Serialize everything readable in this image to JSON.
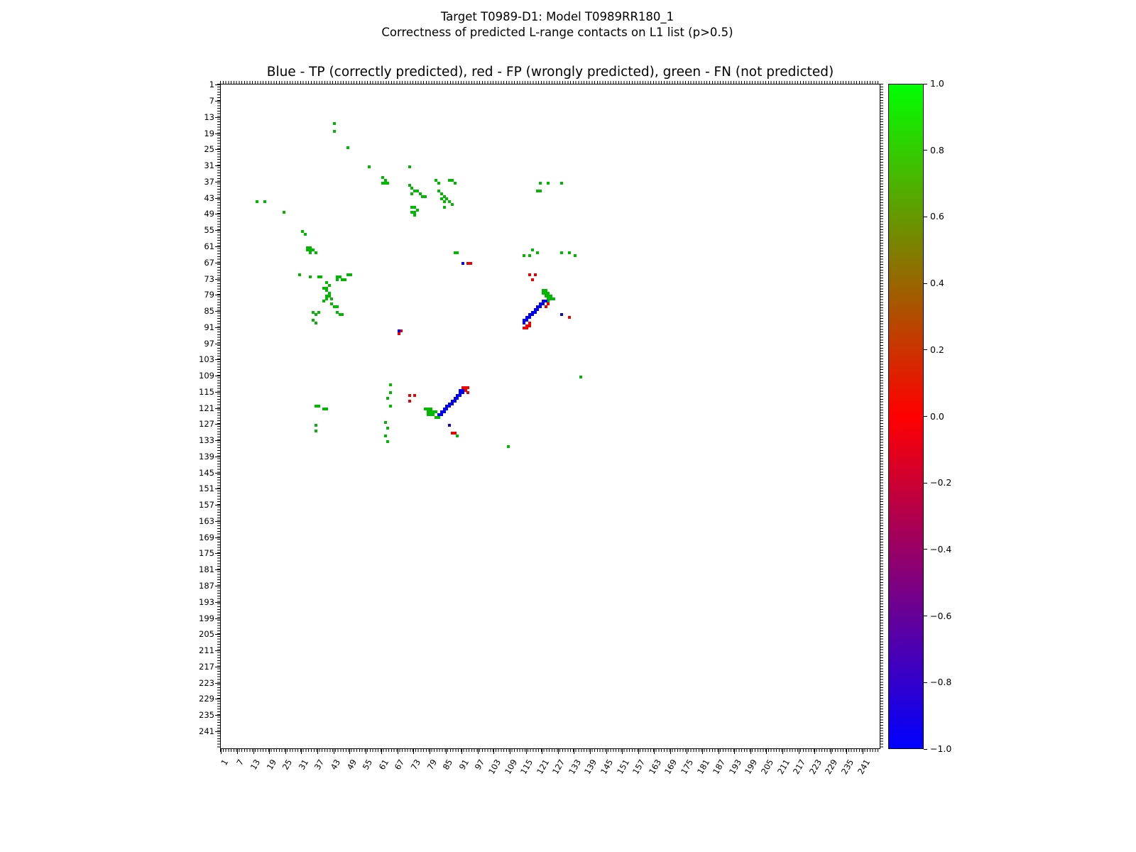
{
  "figure": {
    "title_line1": "Target T0989-D1: Model T0989RR180_1",
    "title_line2": "Correctness of predicted L-range contacts on L1 list (p>0.5)"
  },
  "chart_data": {
    "type": "heatmap",
    "title": "Blue - TP (correctly predicted), red - FP (wrongly predicted), green - FN (not predicted)",
    "xlabel": "",
    "ylabel": "",
    "axis_description": "residue-residue contact map, residue index on both axes",
    "axis_min": 1,
    "axis_max": 247,
    "grid": false,
    "tick_values": [
      1,
      7,
      13,
      19,
      25,
      31,
      37,
      43,
      49,
      55,
      61,
      67,
      73,
      79,
      85,
      91,
      97,
      103,
      109,
      115,
      121,
      127,
      133,
      139,
      145,
      151,
      157,
      163,
      169,
      175,
      181,
      187,
      193,
      199,
      205,
      211,
      217,
      223,
      229,
      235,
      241
    ],
    "series": [
      {
        "name": "FN (not predicted)",
        "color": "#00b800",
        "points": [
          [
            43,
            15
          ],
          [
            43,
            18
          ],
          [
            48,
            24
          ],
          [
            56,
            31
          ],
          [
            71,
            31
          ],
          [
            61,
            35
          ],
          [
            62,
            36
          ],
          [
            61,
            37
          ],
          [
            62,
            37
          ],
          [
            63,
            37
          ],
          [
            81,
            36
          ],
          [
            86,
            36
          ],
          [
            87,
            36
          ],
          [
            82,
            37
          ],
          [
            88,
            37
          ],
          [
            120,
            37
          ],
          [
            123,
            37
          ],
          [
            128,
            37
          ],
          [
            71,
            38
          ],
          [
            72,
            39
          ],
          [
            73,
            40
          ],
          [
            74,
            40
          ],
          [
            72,
            41
          ],
          [
            75,
            41
          ],
          [
            76,
            42
          ],
          [
            77,
            42
          ],
          [
            119,
            40
          ],
          [
            120,
            40
          ],
          [
            82,
            40
          ],
          [
            83,
            41
          ],
          [
            84,
            42
          ],
          [
            14,
            44
          ],
          [
            17,
            44
          ],
          [
            85,
            43
          ],
          [
            83,
            43
          ],
          [
            84,
            44
          ],
          [
            86,
            44
          ],
          [
            84,
            46
          ],
          [
            87,
            45
          ],
          [
            72,
            46
          ],
          [
            73,
            46
          ],
          [
            74,
            47
          ],
          [
            72,
            48
          ],
          [
            73,
            48
          ],
          [
            73,
            49
          ],
          [
            24,
            48
          ],
          [
            31,
            55
          ],
          [
            32,
            56
          ],
          [
            33,
            61
          ],
          [
            34,
            61
          ],
          [
            33,
            62
          ],
          [
            34,
            62
          ],
          [
            35,
            62
          ],
          [
            34,
            63
          ],
          [
            36,
            63
          ],
          [
            88,
            63
          ],
          [
            89,
            63
          ],
          [
            114,
            64
          ],
          [
            116,
            64
          ],
          [
            117,
            62
          ],
          [
            119,
            63
          ],
          [
            128,
            63
          ],
          [
            131,
            63
          ],
          [
            133,
            64
          ],
          [
            30,
            71
          ],
          [
            34,
            72
          ],
          [
            37,
            72
          ],
          [
            38,
            72
          ],
          [
            44,
            72
          ],
          [
            45,
            72
          ],
          [
            48,
            71
          ],
          [
            49,
            71
          ],
          [
            46,
            73
          ],
          [
            47,
            73
          ],
          [
            44,
            73
          ],
          [
            40,
            74
          ],
          [
            41,
            75
          ],
          [
            39,
            76
          ],
          [
            40,
            76
          ],
          [
            40,
            77
          ],
          [
            41,
            78
          ],
          [
            40,
            79
          ],
          [
            41,
            79
          ],
          [
            40,
            80
          ],
          [
            42,
            80
          ],
          [
            39,
            81
          ],
          [
            42,
            82
          ],
          [
            43,
            83
          ],
          [
            44,
            83
          ],
          [
            35,
            85
          ],
          [
            37,
            85
          ],
          [
            36,
            86
          ],
          [
            44,
            85
          ],
          [
            45,
            86
          ],
          [
            46,
            86
          ],
          [
            35,
            88
          ],
          [
            36,
            89
          ],
          [
            121,
            77
          ],
          [
            122,
            77
          ],
          [
            121,
            78
          ],
          [
            122,
            78
          ],
          [
            123,
            78
          ],
          [
            122,
            79
          ],
          [
            123,
            79
          ],
          [
            124,
            79
          ],
          [
            123,
            80
          ],
          [
            124,
            80
          ],
          [
            125,
            80
          ],
          [
            123,
            81
          ],
          [
            64,
            112
          ],
          [
            64,
            115
          ],
          [
            63,
            117
          ],
          [
            64,
            120
          ],
          [
            135,
            109
          ],
          [
            77,
            121
          ],
          [
            78,
            121
          ],
          [
            79,
            121
          ],
          [
            78,
            122
          ],
          [
            79,
            122
          ],
          [
            80,
            122
          ],
          [
            81,
            122
          ],
          [
            78,
            123
          ],
          [
            79,
            123
          ],
          [
            80,
            123
          ],
          [
            81,
            124
          ],
          [
            82,
            124
          ],
          [
            36,
            120
          ],
          [
            37,
            120
          ],
          [
            39,
            121
          ],
          [
            40,
            121
          ],
          [
            36,
            127
          ],
          [
            36,
            129
          ],
          [
            62,
            126
          ],
          [
            63,
            128
          ],
          [
            62,
            131
          ],
          [
            63,
            133
          ],
          [
            89,
            131
          ],
          [
            108,
            135
          ]
        ]
      },
      {
        "name": "FP (wrongly predicted)",
        "color": "#ee0000",
        "points": [
          [
            93,
            67
          ],
          [
            94,
            67
          ],
          [
            116,
            71
          ],
          [
            118,
            71
          ],
          [
            117,
            73
          ],
          [
            123,
            82
          ],
          [
            122,
            83
          ],
          [
            116,
            89
          ],
          [
            115,
            90
          ],
          [
            116,
            90
          ],
          [
            114,
            91
          ],
          [
            115,
            91
          ],
          [
            131,
            87
          ],
          [
            68,
            92
          ],
          [
            67,
            93
          ],
          [
            91,
            113
          ],
          [
            92,
            113
          ],
          [
            93,
            113
          ],
          [
            92,
            114
          ],
          [
            93,
            115
          ],
          [
            71,
            116
          ],
          [
            73,
            116
          ],
          [
            71,
            118
          ],
          [
            87,
            130
          ],
          [
            88,
            130
          ]
        ]
      },
      {
        "name": "TP (correctly predicted)",
        "color": "#0000ee",
        "points": [
          [
            91,
            67
          ],
          [
            121,
            81
          ],
          [
            122,
            81
          ],
          [
            120,
            82
          ],
          [
            121,
            82
          ],
          [
            119,
            83
          ],
          [
            120,
            83
          ],
          [
            118,
            84
          ],
          [
            119,
            84
          ],
          [
            117,
            85
          ],
          [
            118,
            85
          ],
          [
            116,
            86
          ],
          [
            117,
            86
          ],
          [
            115,
            87
          ],
          [
            116,
            87
          ],
          [
            114,
            88
          ],
          [
            115,
            88
          ],
          [
            114,
            89
          ],
          [
            128,
            86
          ],
          [
            67,
            92
          ],
          [
            90,
            114
          ],
          [
            91,
            114
          ],
          [
            90,
            115
          ],
          [
            91,
            115
          ],
          [
            89,
            116
          ],
          [
            90,
            116
          ],
          [
            88,
            117
          ],
          [
            89,
            117
          ],
          [
            87,
            118
          ],
          [
            88,
            118
          ],
          [
            86,
            119
          ],
          [
            87,
            119
          ],
          [
            85,
            120
          ],
          [
            86,
            120
          ],
          [
            84,
            121
          ],
          [
            85,
            121
          ],
          [
            83,
            122
          ],
          [
            84,
            122
          ],
          [
            82,
            123
          ],
          [
            83,
            123
          ],
          [
            86,
            127
          ]
        ]
      }
    ],
    "colorbar": {
      "tick_labels": [
        "1.0",
        "0.8",
        "0.6",
        "0.4",
        "0.2",
        "0.0",
        "−0.2",
        "−0.4",
        "−0.6",
        "−0.8",
        "−1.0"
      ],
      "gradient": [
        {
          "pos": 0.0,
          "color": "#00ff00"
        },
        {
          "pos": 0.25,
          "color": "#7f7f00"
        },
        {
          "pos": 0.5,
          "color": "#ff0000"
        },
        {
          "pos": 0.75,
          "color": "#7f007f"
        },
        {
          "pos": 1.0,
          "color": "#0000ff"
        }
      ]
    }
  }
}
